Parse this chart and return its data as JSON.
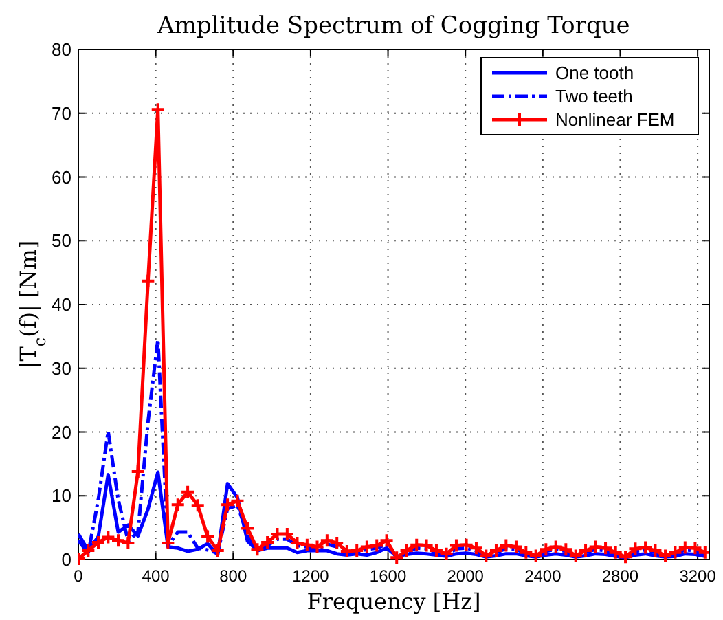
{
  "chart_data": {
    "type": "line",
    "title": "Amplitude Spectrum of Cogging Torque",
    "xlabel": "Frequency [Hz]",
    "ylabel": "|T$_{c}$(f)| [Nm]",
    "x": [
      0,
      51,
      103,
      154,
      206,
      257,
      308,
      360,
      411,
      463,
      514,
      565,
      617,
      668,
      720,
      771,
      822,
      874,
      925,
      977,
      1028,
      1079,
      1131,
      1182,
      1234,
      1285,
      1336,
      1388,
      1439,
      1491,
      1542,
      1593,
      1645,
      1696,
      1748,
      1799,
      1850,
      1902,
      1953,
      2005,
      2056,
      2107,
      2159,
      2210,
      2262,
      2313,
      2364,
      2416,
      2467,
      2519,
      2570,
      2621,
      2673,
      2724,
      2776,
      2827,
      2878,
      2930,
      2981,
      3033,
      3084,
      3135,
      3187,
      3238
    ],
    "xlim": [
      0,
      3260
    ],
    "xticks": [
      0,
      400,
      800,
      1200,
      1600,
      2000,
      2400,
      2800,
      3200
    ],
    "ylim": [
      0,
      80
    ],
    "yticks": [
      0,
      10,
      20,
      30,
      40,
      50,
      60,
      70,
      80
    ],
    "grid": true,
    "legend": "top right",
    "series": [
      {
        "name": "One tooth",
        "color": "#0000ff",
        "line_style": "solid",
        "marker": "none",
        "values": [
          4.0,
          1.4,
          3.6,
          13.3,
          4.3,
          5.4,
          3.7,
          7.9,
          13.7,
          2.0,
          1.8,
          1.3,
          1.6,
          2.5,
          0.7,
          11.9,
          9.7,
          2.9,
          1.4,
          1.8,
          1.8,
          1.8,
          1.1,
          1.4,
          1.4,
          1.4,
          0.9,
          0.7,
          0.9,
          0.7,
          1.1,
          1.8,
          0.5,
          0.8,
          1.0,
          0.9,
          0.7,
          0.5,
          0.9,
          1.0,
          0.8,
          0.4,
          0.6,
          0.9,
          0.9,
          0.6,
          0.4,
          0.7,
          0.9,
          0.7,
          0.4,
          0.6,
          0.9,
          0.8,
          0.5,
          0.3,
          0.7,
          0.9,
          0.6,
          0.4,
          0.5,
          0.9,
          0.8,
          0.5
        ]
      },
      {
        "name": "Two teeth",
        "color": "#0000ff",
        "line_style": "dashdot",
        "marker": "none",
        "values": [
          3.0,
          1.0,
          9.4,
          20.1,
          9.4,
          2.9,
          4.3,
          21.6,
          34.5,
          2.2,
          4.3,
          4.3,
          1.8,
          1.5,
          1.0,
          8.0,
          8.5,
          4.0,
          1.4,
          2.2,
          3.2,
          3.2,
          2.2,
          2.0,
          1.6,
          2.4,
          2.0,
          1.1,
          1.2,
          1.6,
          1.8,
          2.4,
          0.3,
          1.1,
          1.8,
          1.7,
          1.1,
          0.7,
          1.7,
          1.8,
          1.4,
          0.5,
          1.1,
          1.7,
          1.6,
          0.9,
          0.5,
          1.3,
          1.6,
          1.3,
          0.5,
          1.1,
          1.6,
          1.4,
          0.9,
          0.3,
          1.3,
          1.5,
          1.1,
          0.5,
          0.9,
          1.5,
          1.4,
          0.9
        ]
      },
      {
        "name": "Nonlinear FEM",
        "color": "#ff0000",
        "line_style": "solid",
        "marker": "cross",
        "values": [
          0.1,
          1.4,
          2.7,
          3.5,
          3.0,
          2.6,
          13.8,
          43.7,
          70.6,
          2.6,
          8.6,
          10.6,
          8.5,
          3.6,
          1.4,
          8.6,
          9.2,
          4.9,
          1.6,
          2.7,
          4.0,
          4.0,
          2.6,
          2.3,
          2.0,
          3.0,
          2.6,
          1.3,
          1.4,
          2.0,
          2.2,
          3.0,
          0.3,
          1.4,
          2.3,
          2.2,
          1.4,
          0.9,
          2.2,
          2.3,
          1.8,
          0.6,
          1.4,
          2.2,
          2.0,
          1.1,
          0.6,
          1.6,
          2.0,
          1.6,
          0.6,
          1.4,
          2.0,
          1.8,
          1.1,
          0.4,
          1.7,
          1.9,
          1.4,
          0.6,
          1.1,
          1.9,
          1.8,
          1.1
        ]
      }
    ]
  }
}
